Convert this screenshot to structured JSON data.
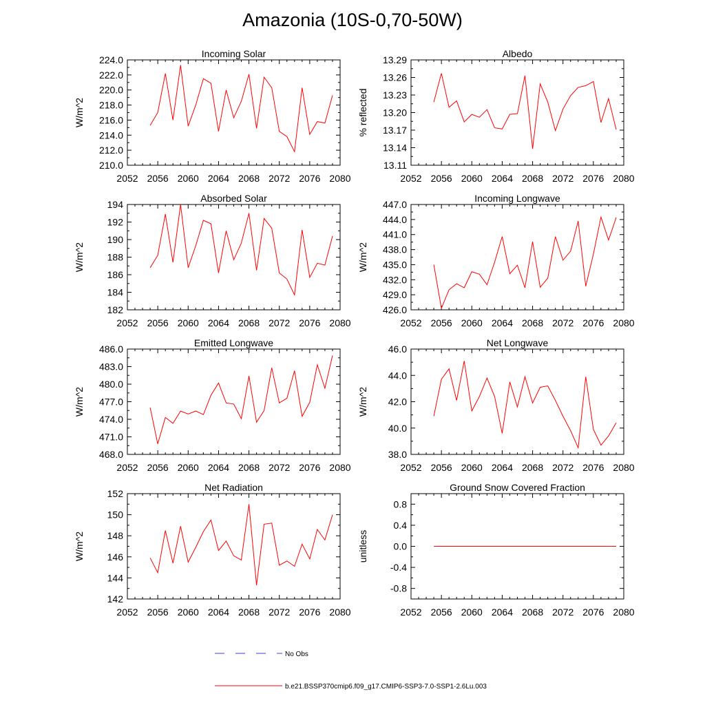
{
  "page": {
    "title": "Amazonia (10S-0,70-50W)"
  },
  "colors": {
    "model_line": "#ff0000",
    "obs_line": "#3344cc",
    "axis": "#000000"
  },
  "legend": {
    "obs_label": "No Obs",
    "model_label": "b.e21.BSSP370cmip6.f09_g17.CMIP6-SSP3-7.0-SSP1-2.6Lu.003"
  },
  "chart_data": [
    {
      "type": "line",
      "title": "Incoming Solar",
      "ylabel": "W/m^2",
      "xlim": [
        2052,
        2080
      ],
      "xticks": [
        "2052",
        "2056",
        "2060",
        "2064",
        "2068",
        "2072",
        "2076",
        "2080"
      ],
      "ylim": [
        210,
        224
      ],
      "yticks": [
        "210.0",
        "212.0",
        "214.0",
        "216.0",
        "218.0",
        "220.0",
        "222.0",
        "224.0"
      ],
      "ytick_values": [
        210,
        212,
        214,
        216,
        218,
        220,
        222,
        224
      ],
      "x": [
        2055,
        2056,
        2057,
        2058,
        2059,
        2060,
        2061,
        2062,
        2063,
        2064,
        2065,
        2066,
        2067,
        2068,
        2069,
        2070,
        2071,
        2072,
        2073,
        2074,
        2075,
        2076,
        2077,
        2078,
        2079
      ],
      "series": [
        {
          "values": [
            215.3,
            217.0,
            222.2,
            216.0,
            223.3,
            215.2,
            218.0,
            221.5,
            220.9,
            214.5,
            220.0,
            216.3,
            218.5,
            222.1,
            214.9,
            221.7,
            220.3,
            214.5,
            213.8,
            211.8,
            220.3,
            214.1,
            215.8,
            215.6,
            219.3
          ]
        }
      ]
    },
    {
      "type": "line",
      "title": "Albedo",
      "ylabel": "% reflected",
      "xlim": [
        2052,
        2080
      ],
      "xticks": [
        "2052",
        "2056",
        "2060",
        "2064",
        "2068",
        "2072",
        "2076",
        "2080"
      ],
      "ylim": [
        13.11,
        13.29
      ],
      "yticks": [
        "13.11",
        "13.14",
        "13.17",
        "13.20",
        "13.23",
        "13.26",
        "13.29"
      ],
      "ytick_values": [
        13.11,
        13.14,
        13.17,
        13.2,
        13.23,
        13.26,
        13.29
      ],
      "x": [
        2055,
        2056,
        2057,
        2058,
        2059,
        2060,
        2061,
        2062,
        2063,
        2064,
        2065,
        2066,
        2067,
        2068,
        2069,
        2070,
        2071,
        2072,
        2073,
        2074,
        2075,
        2076,
        2077,
        2078,
        2079
      ],
      "series": [
        {
          "values": [
            13.218,
            13.267,
            13.209,
            13.22,
            13.184,
            13.197,
            13.192,
            13.205,
            13.174,
            13.172,
            13.197,
            13.198,
            13.263,
            13.138,
            13.249,
            13.218,
            13.169,
            13.206,
            13.229,
            13.243,
            13.246,
            13.253,
            13.183,
            13.224,
            13.171
          ]
        }
      ]
    },
    {
      "type": "line",
      "title": "Absorbed Solar",
      "ylabel": "W/m^2",
      "xlim": [
        2052,
        2080
      ],
      "xticks": [
        "2052",
        "2056",
        "2060",
        "2064",
        "2068",
        "2072",
        "2076",
        "2080"
      ],
      "ylim": [
        182,
        194
      ],
      "yticks": [
        "182",
        "184",
        "186",
        "188",
        "190",
        "192",
        "194"
      ],
      "ytick_values": [
        182,
        184,
        186,
        188,
        190,
        192,
        194
      ],
      "x": [
        2055,
        2056,
        2057,
        2058,
        2059,
        2060,
        2061,
        2062,
        2063,
        2064,
        2065,
        2066,
        2067,
        2068,
        2069,
        2070,
        2071,
        2072,
        2073,
        2074,
        2075,
        2076,
        2077,
        2078,
        2079
      ],
      "series": [
        {
          "values": [
            186.8,
            188.2,
            192.9,
            187.4,
            194.0,
            186.8,
            189.3,
            192.2,
            191.8,
            186.2,
            191.0,
            187.7,
            189.6,
            193.0,
            186.5,
            192.4,
            191.3,
            186.2,
            185.5,
            183.7,
            191.1,
            185.7,
            187.3,
            187.1,
            190.4
          ]
        }
      ]
    },
    {
      "type": "line",
      "title": "Incoming Longwave",
      "ylabel": "W/m^2",
      "xlim": [
        2052,
        2080
      ],
      "xticks": [
        "2052",
        "2056",
        "2060",
        "2064",
        "2068",
        "2072",
        "2076",
        "2080"
      ],
      "ylim": [
        426,
        447
      ],
      "yticks": [
        "426.0",
        "429.0",
        "432.0",
        "435.0",
        "438.0",
        "441.0",
        "444.0",
        "447.0"
      ],
      "ytick_values": [
        426,
        429,
        432,
        435,
        438,
        441,
        444,
        447
      ],
      "x": [
        2055,
        2056,
        2057,
        2058,
        2059,
        2060,
        2061,
        2062,
        2063,
        2064,
        2065,
        2066,
        2067,
        2068,
        2069,
        2070,
        2071,
        2072,
        2073,
        2074,
        2075,
        2076,
        2077,
        2078,
        2079
      ],
      "series": [
        {
          "values": [
            435.0,
            426.3,
            430.0,
            431.2,
            430.4,
            433.6,
            433.1,
            431.0,
            435.5,
            440.6,
            433.2,
            434.9,
            430.4,
            439.6,
            430.5,
            432.3,
            440.6,
            435.9,
            437.7,
            443.7,
            430.7,
            437.1,
            444.5,
            439.9,
            444.4
          ]
        }
      ]
    },
    {
      "type": "line",
      "title": "Emitted Longwave",
      "ylabel": "W/m^2",
      "xlim": [
        2052,
        2080
      ],
      "xticks": [
        "2052",
        "2056",
        "2060",
        "2064",
        "2068",
        "2072",
        "2076",
        "2080"
      ],
      "ylim": [
        468,
        486
      ],
      "yticks": [
        "468.0",
        "471.0",
        "474.0",
        "477.0",
        "480.0",
        "483.0",
        "486.0"
      ],
      "ytick_values": [
        468,
        471,
        474,
        477,
        480,
        483,
        486
      ],
      "x": [
        2055,
        2056,
        2057,
        2058,
        2059,
        2060,
        2061,
        2062,
        2063,
        2064,
        2065,
        2066,
        2067,
        2068,
        2069,
        2070,
        2071,
        2072,
        2073,
        2074,
        2075,
        2076,
        2077,
        2078,
        2079
      ],
      "series": [
        {
          "values": [
            476.0,
            469.8,
            474.3,
            473.3,
            475.4,
            474.9,
            475.4,
            474.8,
            478.1,
            480.2,
            476.8,
            476.6,
            474.1,
            481.4,
            473.5,
            475.5,
            482.8,
            476.8,
            477.6,
            482.3,
            474.5,
            476.9,
            483.3,
            479.3,
            484.9
          ]
        }
      ]
    },
    {
      "type": "line",
      "title": "Net Longwave",
      "ylabel": "W/m^2",
      "xlim": [
        2052,
        2080
      ],
      "xticks": [
        "2052",
        "2056",
        "2060",
        "2064",
        "2068",
        "2072",
        "2076",
        "2080"
      ],
      "ylim": [
        38,
        46
      ],
      "yticks": [
        "38.0",
        "40.0",
        "42.0",
        "44.0",
        "46.0"
      ],
      "ytick_values": [
        38,
        40,
        42,
        44,
        46
      ],
      "x": [
        2055,
        2056,
        2057,
        2058,
        2059,
        2060,
        2061,
        2062,
        2063,
        2064,
        2065,
        2066,
        2067,
        2068,
        2069,
        2070,
        2071,
        2072,
        2073,
        2074,
        2075,
        2076,
        2077,
        2078,
        2079
      ],
      "series": [
        {
          "values": [
            40.9,
            43.7,
            44.5,
            42.1,
            45.1,
            41.3,
            42.4,
            43.8,
            42.4,
            39.6,
            43.5,
            41.6,
            43.9,
            41.9,
            43.1,
            43.2,
            42.1,
            40.9,
            39.8,
            38.5,
            43.9,
            39.9,
            38.7,
            39.4,
            40.4
          ]
        }
      ]
    },
    {
      "type": "line",
      "title": "Net Radiation",
      "ylabel": "W/m^2",
      "xlim": [
        2052,
        2080
      ],
      "xticks": [
        "2052",
        "2056",
        "2060",
        "2064",
        "2068",
        "2072",
        "2076",
        "2080"
      ],
      "ylim": [
        142,
        152
      ],
      "yticks": [
        "142",
        "144",
        "146",
        "148",
        "150",
        "152"
      ],
      "ytick_values": [
        142,
        144,
        146,
        148,
        150,
        152
      ],
      "x": [
        2055,
        2056,
        2057,
        2058,
        2059,
        2060,
        2061,
        2062,
        2063,
        2064,
        2065,
        2066,
        2067,
        2068,
        2069,
        2070,
        2071,
        2072,
        2073,
        2074,
        2075,
        2076,
        2077,
        2078,
        2079
      ],
      "series": [
        {
          "values": [
            145.9,
            144.5,
            148.5,
            145.4,
            148.9,
            145.5,
            146.9,
            148.4,
            149.5,
            146.6,
            147.5,
            146.1,
            145.7,
            151.0,
            143.3,
            149.1,
            149.2,
            145.2,
            145.6,
            145.1,
            147.2,
            145.8,
            148.6,
            147.6,
            150.0
          ]
        }
      ]
    },
    {
      "type": "line",
      "title": "Ground Snow Covered Fraction",
      "ylabel": "unitless",
      "xlim": [
        2052,
        2080
      ],
      "xticks": [
        "2052",
        "2056",
        "2060",
        "2064",
        "2068",
        "2072",
        "2076",
        "2080"
      ],
      "ylim": [
        -1.0,
        1.0
      ],
      "yticks": [
        "-0.8",
        "-0.4",
        "0.0",
        "0.4",
        "0.8"
      ],
      "ytick_values": [
        -0.8,
        -0.4,
        0.0,
        0.4,
        0.8
      ],
      "x": [
        2055,
        2079
      ],
      "series": [
        {
          "values": [
            0.0,
            0.0
          ]
        }
      ]
    }
  ]
}
